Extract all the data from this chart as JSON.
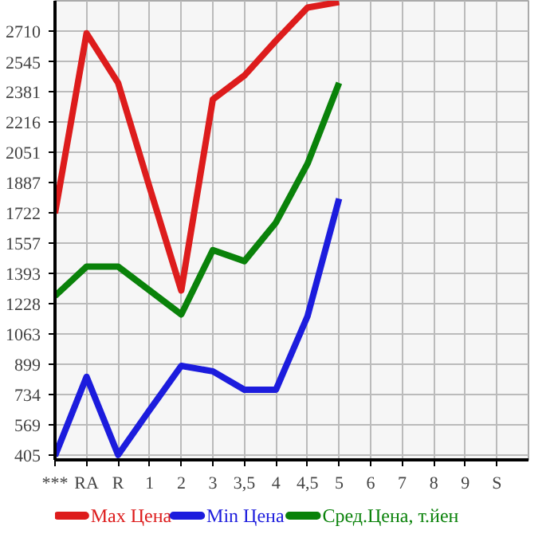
{
  "chart_data": {
    "type": "line",
    "categories": [
      "***",
      "RA",
      "R",
      "1",
      "2",
      "3",
      "3,5",
      "4",
      "4,5",
      "5",
      "6",
      "7",
      "8",
      "9",
      "S"
    ],
    "series": [
      {
        "name": "Max Цена",
        "color": "#dd1c1c",
        "values": [
          1720,
          2700,
          2430,
          1860,
          1300,
          2340,
          2470,
          2660,
          2840,
          2870,
          null,
          null,
          null,
          null,
          null
        ]
      },
      {
        "name": "Min Цена",
        "color": "#1c1cdd",
        "values": [
          400,
          830,
          405,
          650,
          890,
          860,
          760,
          760,
          1160,
          1800,
          null,
          null,
          null,
          null,
          null
        ]
      },
      {
        "name": "Сред.Цена, т.йен",
        "color": "#0a820a",
        "values": [
          1270,
          1430,
          1430,
          1300,
          1170,
          1520,
          1460,
          1670,
          1990,
          2430,
          null,
          null,
          null,
          null,
          null
        ]
      }
    ],
    "ylim": [
      378,
      2877
    ],
    "yticks": [
      405,
      569,
      734,
      899,
      1063,
      1228,
      1393,
      1557,
      1722,
      1887,
      2051,
      2216,
      2381,
      2545,
      2710
    ],
    "grid": true,
    "legend": "bottom",
    "marker": "none",
    "line_style": "solid"
  }
}
